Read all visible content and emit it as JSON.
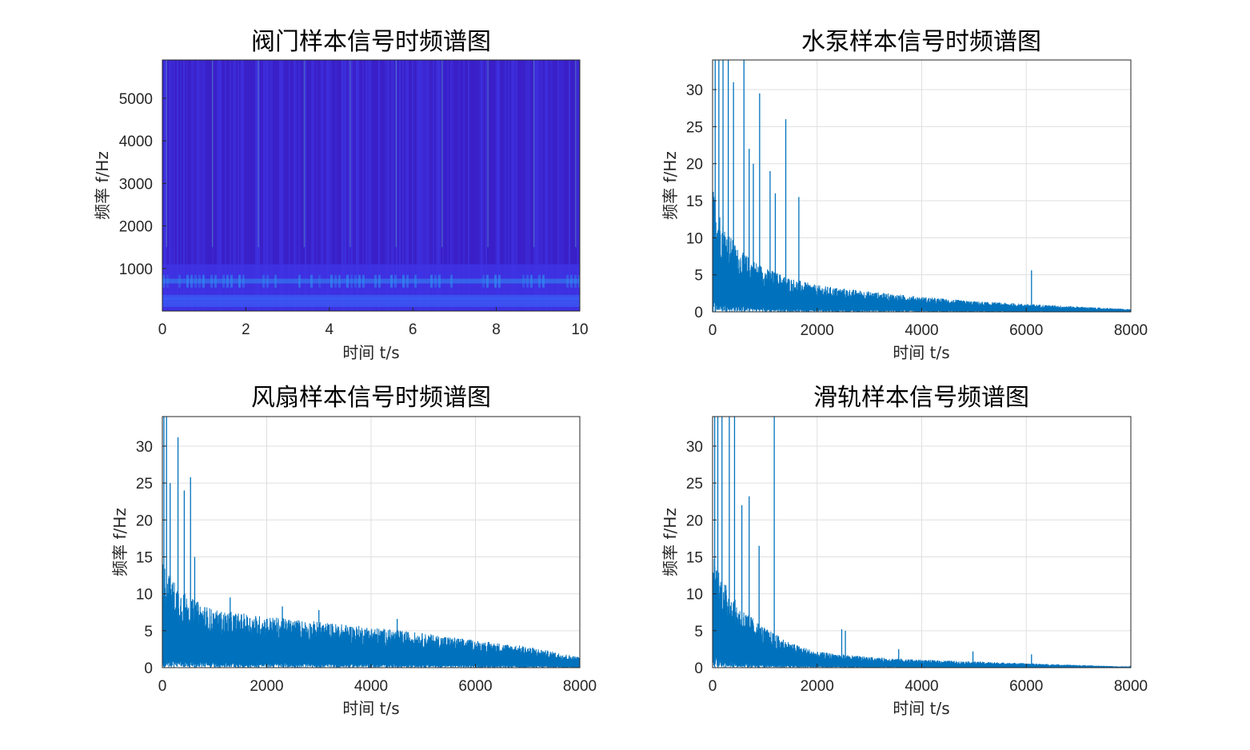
{
  "figure": {
    "background": "#ffffff",
    "line_color": "#0072bd"
  },
  "chart_data": [
    {
      "type": "heatmap",
      "title": "阀门样本信号时频谱图",
      "xlabel": "时间 t/s",
      "ylabel": "频率 f/Hz",
      "xlim": [
        0,
        10
      ],
      "ylim": [
        0,
        5900
      ],
      "xticks": [
        "0",
        "2",
        "4",
        "6",
        "8",
        "10"
      ],
      "xtick_values": [
        0,
        2,
        4,
        6,
        8,
        10
      ],
      "yticks": [
        "1000",
        "2000",
        "3000",
        "4000",
        "5000"
      ],
      "ytick_values": [
        1000,
        2000,
        3000,
        4000,
        5000
      ],
      "grid": false,
      "colormap": [
        "#3a20c8",
        "#3f35e6",
        "#3a5ef5",
        "#2f8cf0"
      ],
      "bright_bands_hz": [
        150,
        250,
        320,
        700
      ],
      "transient_times_s": [
        0.1,
        1.2,
        2.3,
        3.4,
        4.5,
        5.6,
        6.7,
        7.8,
        8.9,
        9.9
      ]
    },
    {
      "type": "line",
      "title": "水泵样本信号时频谱图",
      "xlabel": "时间 t/s",
      "ylabel": "频率 f/Hz",
      "xlim": [
        0,
        8000
      ],
      "ylim": [
        0,
        34
      ],
      "xticks": [
        "0",
        "2000",
        "4000",
        "6000",
        "8000"
      ],
      "xtick_values": [
        0,
        2000,
        4000,
        6000,
        8000
      ],
      "yticks": [
        "0",
        "5",
        "10",
        "15",
        "20",
        "25",
        "30"
      ],
      "ytick_values": [
        0,
        5,
        10,
        15,
        20,
        25,
        30
      ],
      "grid": true,
      "envelope": {
        "x": [
          0,
          200,
          500,
          1000,
          1500,
          2000,
          3000,
          4000,
          5000,
          6000,
          7000,
          8000
        ],
        "y": [
          14,
          10,
          7,
          5,
          3.8,
          3.0,
          2.3,
          1.7,
          1.2,
          0.9,
          0.6,
          0.3
        ]
      },
      "peaks": {
        "x": [
          50,
          120,
          200,
          300,
          400,
          600,
          700,
          780,
          900,
          1100,
          1200,
          1400,
          1650,
          6100
        ],
        "y": [
          34,
          34,
          34,
          34,
          31,
          34,
          22,
          20,
          29.5,
          19,
          16,
          26,
          15.5,
          5.6
        ]
      }
    },
    {
      "type": "line",
      "title": "风扇样本信号时频谱图",
      "xlabel": "时间 t/s",
      "ylabel": "频率 f/Hz",
      "xlim": [
        0,
        8000
      ],
      "ylim": [
        0,
        34
      ],
      "xticks": [
        "0",
        "2000",
        "4000",
        "6000",
        "8000"
      ],
      "xtick_values": [
        0,
        2000,
        4000,
        6000,
        8000
      ],
      "yticks": [
        "0",
        "5",
        "10",
        "15",
        "20",
        "25",
        "30"
      ],
      "ytick_values": [
        0,
        5,
        10,
        15,
        20,
        25,
        30
      ],
      "grid": true,
      "envelope": {
        "x": [
          0,
          200,
          500,
          1000,
          2000,
          3000,
          4000,
          5000,
          6000,
          7000,
          8000
        ],
        "y": [
          12,
          10,
          8,
          6.5,
          5.8,
          5.2,
          4.6,
          3.9,
          3.1,
          2.4,
          1.2
        ]
      },
      "peaks": {
        "x": [
          30,
          80,
          150,
          300,
          420,
          540,
          620,
          1300,
          2300,
          3000,
          4500
        ],
        "y": [
          34,
          34,
          25,
          31.2,
          24,
          25.8,
          15,
          9.5,
          8.3,
          7.8,
          6.6
        ]
      }
    },
    {
      "type": "line",
      "title": "滑轨样本信号频谱图",
      "xlabel": "时间 t/s",
      "ylabel": "频率 f/Hz",
      "xlim": [
        0,
        8000
      ],
      "ylim": [
        0,
        34
      ],
      "xticks": [
        "0",
        "2000",
        "4000",
        "6000",
        "8000"
      ],
      "xtick_values": [
        0,
        2000,
        4000,
        6000,
        8000
      ],
      "yticks": [
        "0",
        "5",
        "10",
        "15",
        "20",
        "25",
        "30"
      ],
      "ytick_values": [
        0,
        5,
        10,
        15,
        20,
        25,
        30
      ],
      "grid": true,
      "envelope": {
        "x": [
          0,
          200,
          500,
          1000,
          1500,
          2000,
          3000,
          4000,
          5000,
          6000,
          7000,
          8000
        ],
        "y": [
          13,
          10,
          7,
          4.5,
          2.8,
          1.8,
          1.2,
          0.9,
          0.7,
          0.5,
          0.3,
          0.1
        ]
      },
      "peaks": {
        "x": [
          40,
          100,
          180,
          320,
          420,
          560,
          700,
          890,
          1180,
          2470,
          2540,
          3560,
          4980,
          6100
        ],
        "y": [
          34,
          34,
          34,
          34,
          34,
          22,
          23.2,
          16.5,
          34,
          5.2,
          5,
          2.5,
          2.2,
          1.8
        ]
      }
    }
  ]
}
